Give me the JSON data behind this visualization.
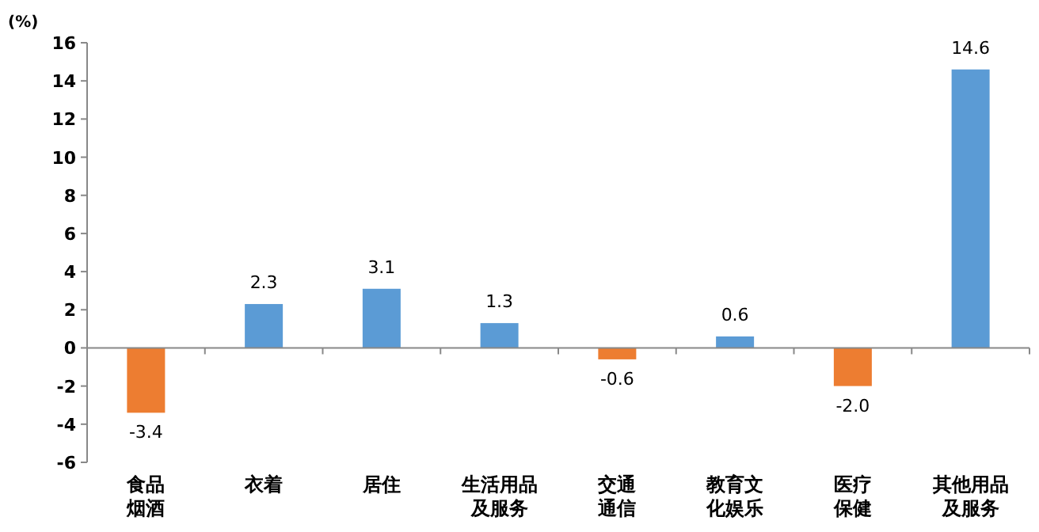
{
  "chart_data": {
    "type": "bar",
    "ylabel": "(%)",
    "categories": [
      "食品烟酒",
      "衣着",
      "居住",
      "生活用品及服务",
      "交通通信",
      "教育文化娱乐",
      "医疗保健",
      "其他用品及服务"
    ],
    "values": [
      -3.4,
      2.3,
      3.1,
      1.3,
      -0.6,
      0.6,
      -2.0,
      14.6
    ],
    "colors": [
      "#ed7d31",
      "#5b9bd5",
      "#5b9bd5",
      "#5b9bd5",
      "#ed7d31",
      "#5b9bd5",
      "#ed7d31",
      "#5b9bd5"
    ],
    "value_labels": [
      "-3.4",
      "2.3",
      "3.1",
      "1.3",
      "-0.6",
      "0.6",
      "-2.0",
      "14.6"
    ],
    "ylim": [
      -6,
      16
    ],
    "yticks": [
      -6,
      -4,
      -2,
      0,
      2,
      4,
      6,
      8,
      10,
      12,
      14,
      16
    ]
  }
}
